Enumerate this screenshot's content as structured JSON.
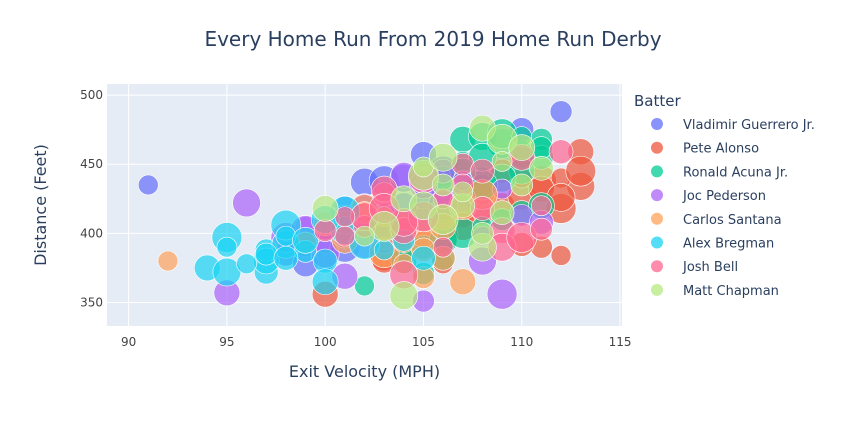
{
  "chart_data": {
    "type": "scatter",
    "title": "Every Home Run From 2019 Home Run Derby",
    "xlabel": "Exit Velocity (MPH)",
    "ylabel": "Distance (Feet)",
    "xlim": [
      88.9,
      115.1
    ],
    "ylim": [
      333,
      508
    ],
    "xticks": [
      90,
      95,
      100,
      105,
      110,
      115
    ],
    "yticks": [
      350,
      400,
      450,
      500
    ],
    "grid": true,
    "legend": {
      "title": "Batter",
      "placement": "right"
    },
    "series": [
      {
        "name": "Vladimir Guerrero Jr.",
        "color": "#636efa",
        "points": [
          [
            91,
            435
          ],
          [
            112,
            488
          ],
          [
            110,
            475
          ],
          [
            105,
            457
          ],
          [
            102,
            437
          ],
          [
            103,
            438
          ],
          [
            101,
            420
          ],
          [
            100,
            381
          ],
          [
            99,
            392
          ],
          [
            100,
            395
          ],
          [
            104,
            440
          ],
          [
            106,
            445
          ],
          [
            107,
            431
          ],
          [
            108,
            440
          ],
          [
            105,
            410
          ],
          [
            102,
            418
          ],
          [
            103,
            405
          ],
          [
            101,
            390
          ],
          [
            109,
            452
          ],
          [
            108,
            435
          ],
          [
            106,
            430
          ],
          [
            104,
            420
          ],
          [
            103,
            400
          ],
          [
            102,
            410
          ],
          [
            105,
            425
          ],
          [
            107,
            418
          ],
          [
            98,
            385
          ],
          [
            99,
            378
          ]
        ]
      },
      {
        "name": "Pete Alonso",
        "color": "#EF553B",
        "points": [
          [
            113,
            459
          ],
          [
            113,
            434
          ],
          [
            112,
            418
          ],
          [
            112,
            384
          ],
          [
            111,
            390
          ],
          [
            110,
            392
          ],
          [
            100,
            356
          ],
          [
            103,
            383
          ],
          [
            104,
            402
          ],
          [
            106,
            378
          ],
          [
            107,
            412
          ],
          [
            108,
            415
          ],
          [
            109,
            420
          ],
          [
            110,
            427
          ],
          [
            111,
            438
          ],
          [
            112,
            440
          ],
          [
            110,
            455
          ],
          [
            109,
            445
          ],
          [
            108,
            430
          ],
          [
            107,
            405
          ],
          [
            106,
            398
          ],
          [
            105,
            395
          ],
          [
            104,
            388
          ],
          [
            103,
            380
          ],
          [
            111,
            432
          ],
          [
            112,
            426
          ],
          [
            113,
            445
          ],
          [
            110,
            440
          ]
        ]
      },
      {
        "name": "Ronald Acuna Jr.",
        "color": "#00cc96",
        "points": [
          [
            102,
            362
          ],
          [
            105,
            371
          ],
          [
            106,
            382
          ],
          [
            107,
            468
          ],
          [
            108,
            470
          ],
          [
            109,
            465
          ],
          [
            110,
            460
          ],
          [
            111,
            468
          ],
          [
            111,
            455
          ],
          [
            110,
            445
          ],
          [
            109,
            440
          ],
          [
            108,
            435
          ],
          [
            107,
            452
          ],
          [
            106,
            415
          ],
          [
            105,
            390
          ],
          [
            104,
            380
          ],
          [
            106,
            395
          ],
          [
            107,
            400
          ],
          [
            108,
            405
          ],
          [
            109,
            410
          ],
          [
            110,
            415
          ],
          [
            111,
            420
          ],
          [
            108,
            455
          ],
          [
            109,
            472
          ],
          [
            110,
            470
          ],
          [
            111,
            462
          ],
          [
            106,
            440
          ],
          [
            107,
            445
          ]
        ]
      },
      {
        "name": "Joc Pederson",
        "color": "#ab63fa",
        "points": [
          [
            95,
            357
          ],
          [
            96,
            422
          ],
          [
            98,
            397
          ],
          [
            99,
            405
          ],
          [
            100,
            403
          ],
          [
            101,
            398
          ],
          [
            101,
            369
          ],
          [
            102,
            392
          ],
          [
            103,
            396
          ],
          [
            104,
            410
          ],
          [
            105,
            351
          ],
          [
            106,
            445
          ],
          [
            107,
            425
          ],
          [
            108,
            380
          ],
          [
            109,
            356
          ],
          [
            109,
            432
          ],
          [
            110,
            413
          ],
          [
            111,
            408
          ],
          [
            104,
            442
          ],
          [
            105,
            435
          ],
          [
            106,
            420
          ],
          [
            107,
            438
          ],
          [
            103,
            414
          ],
          [
            102,
            420
          ],
          [
            101,
            411
          ],
          [
            100,
            385
          ],
          [
            99,
            402
          ],
          [
            108,
            398
          ]
        ]
      },
      {
        "name": "Carlos Santana",
        "color": "#FFA15A",
        "points": [
          [
            92,
            380
          ],
          [
            99,
            393
          ],
          [
            100,
            407
          ],
          [
            101,
            395
          ],
          [
            102,
            418
          ],
          [
            103,
            386
          ],
          [
            104,
            378
          ],
          [
            105,
            368
          ],
          [
            106,
            382
          ],
          [
            107,
            365
          ],
          [
            105,
            400
          ],
          [
            104,
            405
          ],
          [
            103,
            412
          ],
          [
            102,
            415
          ],
          [
            101,
            408
          ],
          [
            106,
            412
          ],
          [
            107,
            420
          ],
          [
            108,
            428
          ],
          [
            103,
            402
          ],
          [
            104,
            394
          ],
          [
            105,
            388
          ],
          [
            106,
            405
          ]
        ]
      },
      {
        "name": "Alex Bregman",
        "color": "#19d3f3",
        "points": [
          [
            94,
            375
          ],
          [
            95,
            372
          ],
          [
            95,
            397
          ],
          [
            95,
            390
          ],
          [
            97,
            388
          ],
          [
            97,
            372
          ],
          [
            97,
            380
          ],
          [
            98,
            392
          ],
          [
            98,
            406
          ],
          [
            98,
            398
          ],
          [
            99,
            387
          ],
          [
            100,
            380
          ],
          [
            100,
            365
          ],
          [
            101,
            402
          ],
          [
            101,
            416
          ],
          [
            96,
            378
          ],
          [
            97,
            385
          ],
          [
            98,
            382
          ],
          [
            99,
            395
          ],
          [
            100,
            410
          ],
          [
            102,
            392
          ],
          [
            103,
            388
          ],
          [
            104,
            395
          ],
          [
            105,
            382
          ]
        ]
      },
      {
        "name": "Josh Bell",
        "color": "#FF6692",
        "points": [
          [
            101,
            398
          ],
          [
            102,
            405
          ],
          [
            103,
            428
          ],
          [
            104,
            402
          ],
          [
            104,
            370
          ],
          [
            105,
            440
          ],
          [
            106,
            425
          ],
          [
            107,
            450
          ],
          [
            108,
            418
          ],
          [
            109,
            402
          ],
          [
            109,
            390
          ],
          [
            110,
            397
          ],
          [
            111,
            420
          ],
          [
            111,
            403
          ],
          [
            112,
            459
          ],
          [
            103,
            432
          ],
          [
            102,
            412
          ],
          [
            105,
            412
          ],
          [
            106,
            390
          ],
          [
            107,
            435
          ],
          [
            108,
            445
          ],
          [
            110,
            455
          ],
          [
            104,
            408
          ],
          [
            103,
            418
          ],
          [
            101,
            412
          ],
          [
            100,
            402
          ]
        ]
      },
      {
        "name": "Matt Chapman",
        "color": "#B6E880",
        "points": [
          [
            100,
            418
          ],
          [
            104,
            355
          ],
          [
            105,
            442
          ],
          [
            105,
            448
          ],
          [
            106,
            435
          ],
          [
            107,
            420
          ],
          [
            108,
            476
          ],
          [
            108,
            390
          ],
          [
            109,
            468
          ],
          [
            109,
            452
          ],
          [
            110,
            435
          ],
          [
            111,
            447
          ],
          [
            104,
            425
          ],
          [
            105,
            420
          ],
          [
            106,
            410
          ],
          [
            107,
            430
          ],
          [
            108,
            400
          ],
          [
            109,
            415
          ],
          [
            110,
            462
          ],
          [
            106,
            455
          ],
          [
            103,
            405
          ],
          [
            102,
            398
          ]
        ]
      }
    ]
  }
}
